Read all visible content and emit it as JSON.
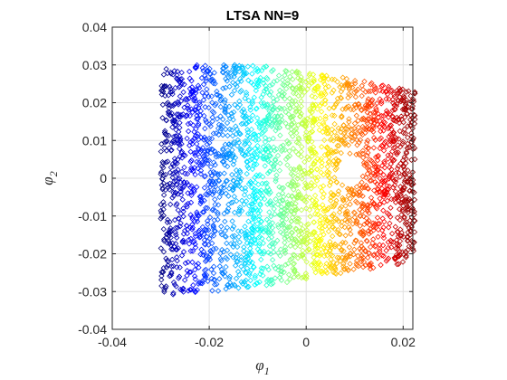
{
  "chart_data": {
    "type": "scatter",
    "title": "LTSA NN=9",
    "xlabel": {
      "symbol": "φ",
      "subscript": "1"
    },
    "ylabel": {
      "symbol": "φ",
      "subscript": "2"
    },
    "xlim": [
      -0.04,
      0.022
    ],
    "ylim": [
      -0.04,
      0.04
    ],
    "x_ticks": [
      -0.04,
      -0.02,
      0,
      0.02
    ],
    "x_tick_labels": [
      "-0.04",
      "-0.02",
      "0",
      "0.02"
    ],
    "y_ticks": [
      -0.04,
      -0.03,
      -0.02,
      -0.01,
      0,
      0.01,
      0.02,
      0.03,
      0.04
    ],
    "y_tick_labels": [
      "-0.04",
      "-0.03",
      "-0.02",
      "-0.01",
      "0",
      "0.01",
      "0.02",
      "0.03",
      "0.04"
    ],
    "grid": true,
    "box": true,
    "marker": "diamond",
    "colormap": "jet",
    "color_by": "x",
    "point_cloud": {
      "n_points": 2800,
      "x_range": [
        -0.03,
        0.0225
      ],
      "y_top_left": 0.03,
      "y_top_right": 0.023,
      "y_bottom_left": -0.031,
      "y_bottom_right": -0.022,
      "hole_center": [
        0.009,
        0.002
      ],
      "hole_radius": [
        0.0025,
        0.0045
      ]
    }
  }
}
